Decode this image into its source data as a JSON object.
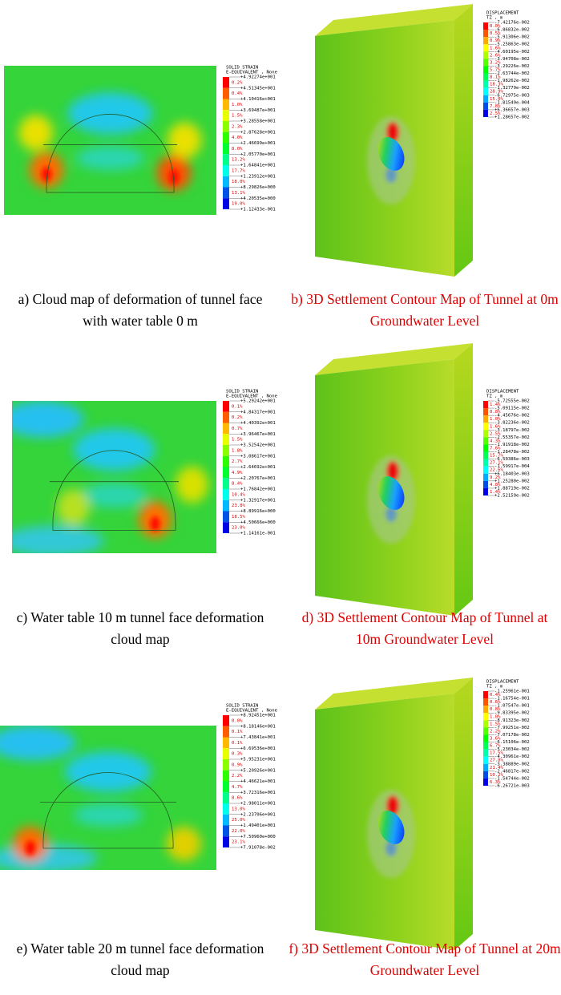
{
  "rows": [
    {
      "face": {
        "legend": {
          "title": "SOLID STRAIN",
          "subtitle": "E-EQUIVALENT , None",
          "values": [
            "+4.92274e+001",
            "+4.51345e+001",
            "+4.10416e+001",
            "+3.69487e+001",
            "+3.28558e+001",
            "+2.87628e+001",
            "+2.46699e+001",
            "+2.05770e+001",
            "+1.64841e+001",
            "+1.23912e+001",
            "+8.29826e+000",
            "+4.20535e+000",
            "+1.12433e-001"
          ],
          "percents": [
            "0.2%",
            "0.4%",
            "1.0%",
            "1.5%",
            "2.3%",
            "4.0%",
            "8.0%",
            "13.2%",
            "17.7%",
            "18.0%",
            "13.1%",
            "19.0%"
          ]
        },
        "caption": "a) Cloud map of deformation of tunnel face with water table 0 m"
      },
      "model": {
        "legend": {
          "title": "DISPLACEMENT",
          "subtitle": "TZ , m",
          "values": [
            "-7.42176e-002",
            "-6.86832e-002",
            "-5.91306e-002",
            "-5.25863e-002",
            "-4.60195e-002",
            "-3.94708e-002",
            "-3.29226e-002",
            "-2.63744e-002",
            "-1.98262e-002",
            "-1.32779e-002",
            "-6.72975e-003",
            "-1.81549e-004",
            "+6.36657e-003",
            "+1.28657e-002"
          ],
          "percents": [
            "0.0%",
            "0.5%",
            "0.9%",
            "1.6%",
            "2.6%",
            "3.2%",
            "5.7%",
            "8.1%",
            "18.3%",
            "28.9%",
            "15.0%",
            "7.8%",
            "2.5%"
          ]
        },
        "caption": "b) 3D Settlement Contour Map of Tunnel at 0m Groundwater Level"
      }
    },
    {
      "face": {
        "legend": {
          "title": "SOLID STRAIN",
          "subtitle": "E-EQUIVALENT , None",
          "values": [
            "+5.29242e+001",
            "+4.84317e+001",
            "+4.40392e+001",
            "+3.96467e+001",
            "+3.52542e+001",
            "+3.08617e+001",
            "+2.64692e+001",
            "+2.20767e+001",
            "+1.76842e+001",
            "+1.32917e+001",
            "+8.89916e+000",
            "+4.50666e+000",
            "+1.14161e-001"
          ],
          "percents": [
            "0.1%",
            "0.2%",
            "0.7%",
            "1.5%",
            "1.8%",
            "2.7%",
            "4.9%",
            "8.4%",
            "10.4%",
            "23.8%",
            "18.5%",
            "23.0%"
          ]
        },
        "caption": "c) Water table 10 m tunnel face deformation cloud map"
      },
      "model": {
        "legend": {
          "title": "DISPLACEMENT",
          "subtitle": "TZ , m",
          "values": [
            "-5.72555e-002",
            "-5.09115e-002",
            "-4.45676e-002",
            "-3.82236e-002",
            "-3.18797e-002",
            "-2.55357e-002",
            "-1.91918e-002",
            "-1.28478e-002",
            "-6.50386e-003",
            "-1.59917e-004",
            "+6.18403e-003",
            "+1.25280e-002",
            "+1.88719e-002",
            "+2.52159e-002"
          ],
          "percents": [
            "1.4%",
            "0.8%",
            "1.0%",
            "1.6%",
            "2.5%",
            "4.3%",
            "7.6%",
            "15.7%",
            "27.1%",
            "22.6%",
            "9.2%",
            "4.8%",
            "1.4%"
          ]
        },
        "caption": "d) 3D Settlement Contour Map of Tunnel at 10m Groundwater Level"
      }
    },
    {
      "face": {
        "legend": {
          "title": "SOLID STRAIN",
          "subtitle": "E-EQUIVALENT , None",
          "values": [
            "+8.92451e+001",
            "+8.18146e+001",
            "+7.43841e+001",
            "+6.69536e+001",
            "+5.95231e+001",
            "+5.20926e+001",
            "+4.46621e+001",
            "+3.72316e+001",
            "+2.98011e+001",
            "+2.23706e+001",
            "+1.49401e+001",
            "+7.50960e+000",
            "+7.91078e-002"
          ],
          "percents": [
            "0.0%",
            "0.1%",
            "0.1%",
            "0.3%",
            "0.9%",
            "2.2%",
            "4.7%",
            "8.6%",
            "13.0%",
            "25.0%",
            "22.0%",
            "23.1%"
          ]
        },
        "caption": "e) Water table 20 m tunnel face deformation cloud map"
      },
      "model": {
        "legend": {
          "title": "DISPLACEMENT",
          "subtitle": "TZ , m",
          "values": [
            "-1.25961e-001",
            "-1.16754e-001",
            "-1.07547e-001",
            "-9.83395e-002",
            "-8.91323e-002",
            "-7.99251e-002",
            "-7.07178e-002",
            "-6.15106e-002",
            "-5.23034e-002",
            "-4.30961e-002",
            "-3.38889e-002",
            "-2.46817e-002",
            "-1.54744e-002",
            "-6.26721e-003"
          ],
          "percents": [
            "0.4%",
            "0.6%",
            "0.8%",
            "1.0%",
            "1.5%",
            "2.2%",
            "3.6%",
            "6.7%",
            "17.5%",
            "27.8%",
            "21.4%",
            "10.2%",
            "6.3%"
          ]
        },
        "caption": "f) 3D Settlement Contour Map of Tunnel at 20m Groundwater Level"
      }
    }
  ]
}
